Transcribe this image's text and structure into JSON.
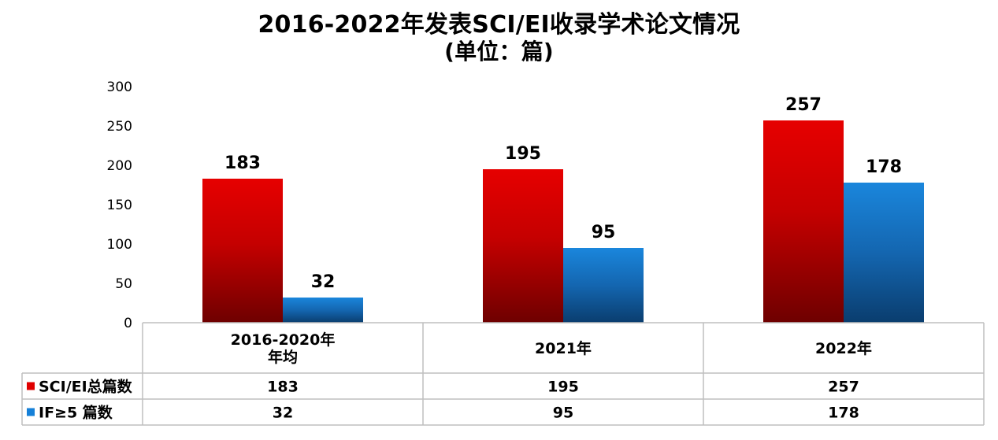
{
  "title": {
    "line1": "2016-2022年发表SCI/EI收录学术论文情况",
    "line2": "(单位：篇)"
  },
  "chart_data": {
    "type": "bar",
    "title": "2016-2022年发表SCI/EI收录学术论文情况 (单位：篇)",
    "categories": [
      [
        "2016-2020年",
        "年均"
      ],
      [
        "2021年"
      ],
      [
        "2022年"
      ]
    ],
    "series": [
      {
        "name": "SCI/EI总篇数",
        "values": [
          183,
          195,
          257
        ],
        "color": "#e00000"
      },
      {
        "name": "IF≥5 篇数",
        "values": [
          32,
          95,
          178
        ],
        "color": "#1580d8"
      }
    ],
    "ylim": [
      0,
      300
    ],
    "yticks": [
      0,
      50,
      100,
      150,
      200,
      250,
      300
    ],
    "grid": false,
    "legend": "data-table"
  }
}
